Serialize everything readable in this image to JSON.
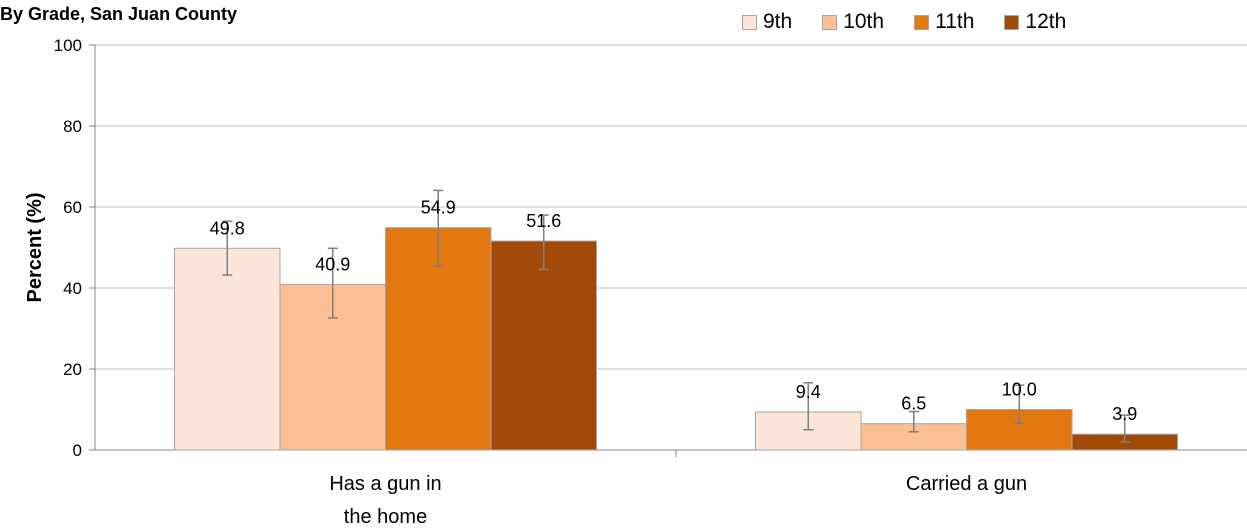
{
  "chart_data": {
    "type": "bar",
    "title": "By Grade, San Juan County",
    "ylabel": "Percent (%)",
    "xlabel": "",
    "ylim": [
      0,
      100
    ],
    "yticks": [
      0,
      20,
      40,
      60,
      80,
      100
    ],
    "categories": [
      [
        "Has a gun in",
        "the home"
      ],
      [
        "Carried a gun"
      ]
    ],
    "series": [
      {
        "name": "9th",
        "color": "#fde5d9",
        "values": [
          49.8,
          9.4
        ],
        "labels": [
          "49.8",
          "9.4"
        ],
        "err_low": [
          43.2,
          5.0
        ],
        "err_high": [
          56.5,
          16.6
        ]
      },
      {
        "name": "10th",
        "color": "#fbbf96",
        "values": [
          40.9,
          6.5
        ],
        "labels": [
          "40.9",
          "6.5"
        ],
        "err_low": [
          32.6,
          4.5
        ],
        "err_high": [
          49.8,
          9.5
        ]
      },
      {
        "name": "11th",
        "color": "#e2780f",
        "values": [
          54.9,
          10.0
        ],
        "labels": [
          "54.9",
          "10.0"
        ],
        "err_low": [
          45.5,
          6.6
        ],
        "err_high": [
          64.1,
          16.0
        ]
      },
      {
        "name": "12th",
        "color": "#a24b09",
        "values": [
          51.6,
          3.9
        ],
        "labels": [
          "51.6",
          "3.9"
        ],
        "err_low": [
          44.6,
          2.0
        ],
        "err_high": [
          58.0,
          8.6
        ]
      }
    ],
    "grid": true,
    "legend": "top-right",
    "gridline_color": "#bfbfbf",
    "axis_color": "#868686",
    "errorbar_color": "#7f7f7f",
    "bar_border_color": "#a6a6a6"
  }
}
